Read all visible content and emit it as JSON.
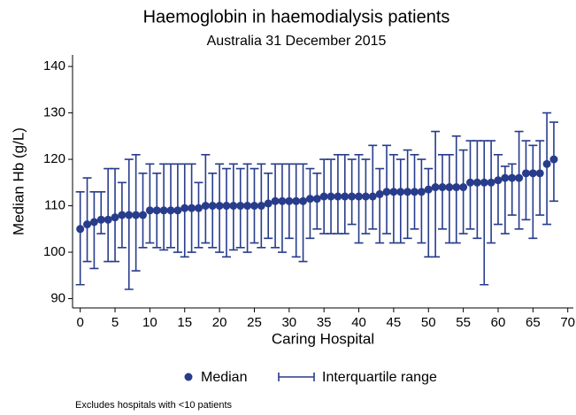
{
  "chart_data": {
    "type": "errorbar-scatter",
    "title": "Haemoglobin in haemodialysis patients",
    "subtitle": "Australia 31 December 2015",
    "x_label": "Caring Hospital",
    "y_label": "Median Hb (g/L)",
    "footnote": "Excludes hospitals with <10 patients",
    "x": [
      0,
      1,
      2,
      3,
      4,
      5,
      6,
      7,
      8,
      9,
      10,
      11,
      12,
      13,
      14,
      15,
      16,
      17,
      18,
      19,
      20,
      21,
      22,
      23,
      24,
      25,
      26,
      27,
      28,
      29,
      30,
      31,
      32,
      33,
      34,
      35,
      36,
      37,
      38,
      39,
      40,
      41,
      42,
      43,
      44,
      45,
      46,
      47,
      48,
      49,
      50,
      51,
      52,
      53,
      54,
      55,
      56,
      57,
      58,
      59,
      60,
      61,
      62,
      63,
      64,
      65,
      66,
      67,
      68
    ],
    "series": [
      {
        "name": "Median",
        "color": "#283c8c",
        "values": [
          105,
          106,
          106.5,
          107,
          107,
          107.5,
          108,
          108,
          108,
          108,
          109,
          109,
          109,
          109,
          109,
          109.5,
          109.5,
          109.5,
          110,
          110,
          110,
          110,
          110,
          110,
          110,
          110,
          110,
          110.5,
          111,
          111,
          111,
          111,
          111,
          111.5,
          111.5,
          112,
          112,
          112,
          112,
          112,
          112,
          112,
          112,
          112.5,
          113,
          113,
          113,
          113,
          113,
          113,
          113.5,
          114,
          114,
          114,
          114,
          114,
          115,
          115,
          115,
          115,
          115.5,
          116,
          116,
          116,
          117,
          117,
          117,
          119,
          120
        ]
      },
      {
        "name": "Interquartile range",
        "color": "#283c8c",
        "low": [
          93,
          98,
          96.5,
          104,
          98,
          98,
          101,
          92,
          96,
          101,
          102,
          101,
          100.5,
          101,
          100,
          99,
          100,
          101,
          102,
          101,
          100,
          99,
          100.5,
          101,
          100,
          102,
          101,
          103,
          101,
          100,
          103,
          99,
          98,
          103,
          105,
          104,
          104,
          104,
          104,
          106,
          102,
          104,
          105,
          102,
          104,
          102,
          102,
          103,
          105,
          102,
          99,
          99,
          105,
          102,
          102,
          104,
          105,
          103,
          93,
          102,
          106,
          104,
          108,
          105,
          107,
          103,
          108,
          106,
          111
        ],
        "high": [
          113,
          116,
          113,
          113,
          118,
          118,
          115,
          120,
          121,
          117,
          119,
          117,
          119,
          119,
          119,
          119,
          119,
          115,
          121,
          117,
          119,
          118,
          119,
          118,
          119,
          118,
          119,
          117,
          119,
          119,
          119,
          119,
          119,
          118,
          117,
          120,
          120,
          121,
          121,
          120,
          121,
          120,
          123,
          118,
          123,
          121,
          120,
          122,
          121,
          120,
          118,
          126,
          121,
          121,
          125,
          122,
          124,
          124,
          124,
          124,
          121,
          118.5,
          119,
          126,
          124,
          123,
          124,
          130,
          128
        ]
      }
    ],
    "xlim": [
      -1.1,
      70.8
    ],
    "xticks": [
      0,
      5,
      10,
      15,
      20,
      25,
      30,
      35,
      40,
      45,
      50,
      55,
      60,
      65,
      70
    ],
    "ylim": [
      88,
      142.5
    ],
    "yticks": [
      90,
      100,
      110,
      120,
      130,
      140
    ],
    "legend": "bottom"
  }
}
